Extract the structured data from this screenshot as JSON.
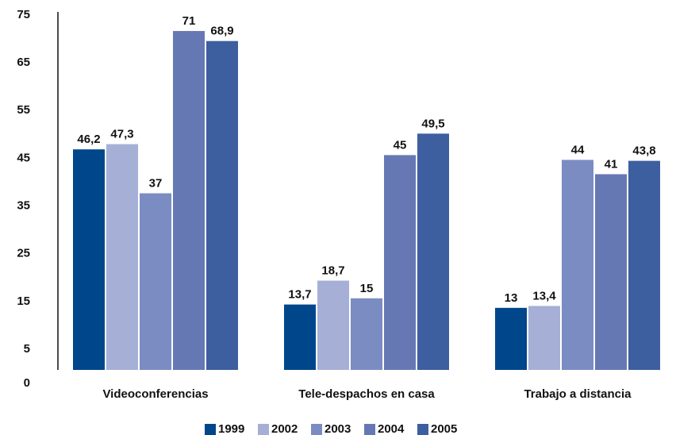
{
  "chart_data": {
    "type": "bar",
    "categories": [
      "Videoconferencias",
      "Tele-despachos en casa",
      "Trabajo a distancia"
    ],
    "series": [
      {
        "name": "1999",
        "color": "#00468b",
        "values": [
          46.2,
          13.7,
          13
        ],
        "value_labels": [
          "46,2",
          "13,7",
          "13"
        ]
      },
      {
        "name": "2002",
        "color": "#a6b0d6",
        "values": [
          47.3,
          18.7,
          13.4
        ],
        "value_labels": [
          "47,3",
          "18,7",
          "13,4"
        ]
      },
      {
        "name": "2003",
        "color": "#7b8cc2",
        "values": [
          37,
          15,
          44
        ],
        "value_labels": [
          "37",
          "15",
          "44"
        ]
      },
      {
        "name": "2004",
        "color": "#6678b4",
        "values": [
          71,
          45,
          41
        ],
        "value_labels": [
          "71",
          "45",
          "41"
        ]
      },
      {
        "name": "2005",
        "color": "#3d5fa0",
        "values": [
          68.9,
          49.5,
          43.8
        ],
        "value_labels": [
          "68,9",
          "49,5",
          "43,8"
        ]
      }
    ],
    "ylim": [
      0,
      75
    ],
    "yticks": [
      0,
      5,
      15,
      25,
      35,
      45,
      55,
      65,
      75
    ],
    "grid": false,
    "legend": "bottom"
  }
}
